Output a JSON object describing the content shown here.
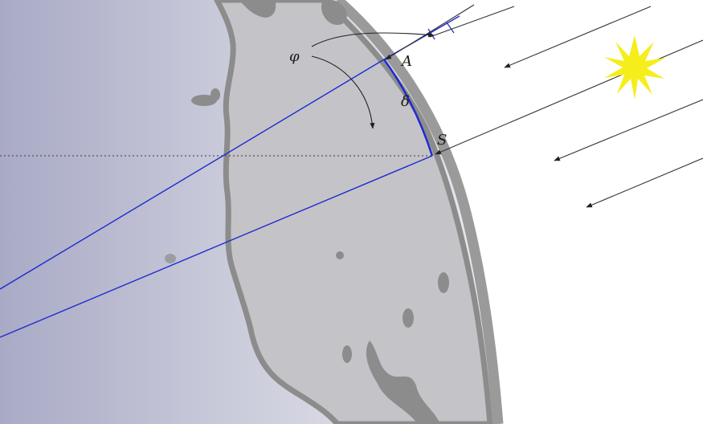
{
  "diagram": {
    "labels": {
      "phi": "φ",
      "point_a": "A",
      "arc_delta": "δ",
      "point_s": "S"
    },
    "icons": {
      "sun": "sun-icon"
    },
    "colors": {
      "sky": "#ffffff",
      "globe_left": "#a9aac6",
      "globe_right": "#e6e7ee",
      "rim": "#9a9a9a",
      "land": "#c4c4c8",
      "coastline": "#8c8c8c",
      "blue_lines": "#1f2bd0",
      "sun": "#f5ee1a",
      "sun_rays": "#4a4a4a",
      "horizontal_dotted": "#555555"
    }
  }
}
